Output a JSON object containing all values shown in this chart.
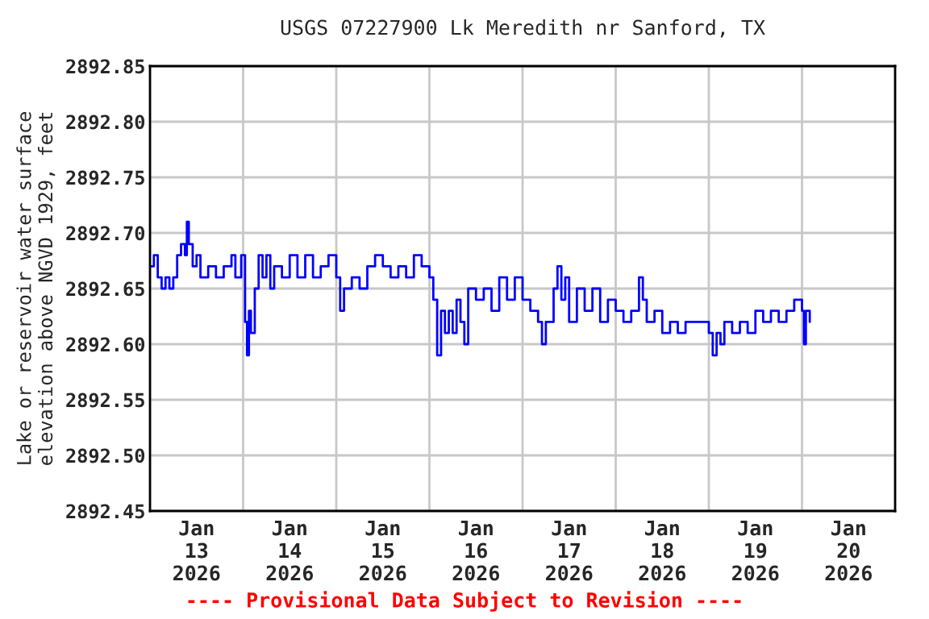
{
  "chart_data": {
    "type": "step",
    "title": "USGS 07227900 Lk Meredith nr Sanford, TX",
    "ylabel": "Lake or reservoir water surface\nelevation above NGVD 1929, feet",
    "annotations": [
      "---- Provisional Data Subject to Revision ----"
    ],
    "grid": true,
    "line_style": "solid",
    "marker": "none",
    "ylim": [
      2892.45,
      2892.85
    ],
    "yticks": [
      {
        "value": 2892.45,
        "label": "2892.45"
      },
      {
        "value": 2892.5,
        "label": "2892.50"
      },
      {
        "value": 2892.55,
        "label": "2892.55"
      },
      {
        "value": 2892.6,
        "label": "2892.60"
      },
      {
        "value": 2892.65,
        "label": "2892.65"
      },
      {
        "value": 2892.7,
        "label": "2892.70"
      },
      {
        "value": 2892.75,
        "label": "2892.75"
      },
      {
        "value": 2892.8,
        "label": "2892.80"
      },
      {
        "value": 2892.85,
        "label": "2892.85"
      }
    ],
    "xlim": [
      "2026-01-13T00:00",
      "2026-01-21T00:00"
    ],
    "xticks": [
      {
        "value": "2026-01-13T00:00",
        "label": null
      },
      {
        "value": "2026-01-13T12:00",
        "label": "Jan\n13\n2026"
      },
      {
        "value": "2026-01-14T00:00",
        "label": null
      },
      {
        "value": "2026-01-14T12:00",
        "label": "Jan\n14\n2026"
      },
      {
        "value": "2026-01-15T00:00",
        "label": null
      },
      {
        "value": "2026-01-15T12:00",
        "label": "Jan\n15\n2026"
      },
      {
        "value": "2026-01-16T00:00",
        "label": null
      },
      {
        "value": "2026-01-16T12:00",
        "label": "Jan\n16\n2026"
      },
      {
        "value": "2026-01-17T00:00",
        "label": null
      },
      {
        "value": "2026-01-17T12:00",
        "label": "Jan\n17\n2026"
      },
      {
        "value": "2026-01-18T00:00",
        "label": null
      },
      {
        "value": "2026-01-18T12:00",
        "label": "Jan\n18\n2026"
      },
      {
        "value": "2026-01-19T00:00",
        "label": null
      },
      {
        "value": "2026-01-19T12:00",
        "label": "Jan\n19\n2026"
      },
      {
        "value": "2026-01-20T00:00",
        "label": null
      },
      {
        "value": "2026-01-20T12:00",
        "label": "Jan\n20\n2026"
      },
      {
        "value": "2026-01-21T00:00",
        "label": null
      }
    ],
    "series": [
      {
        "color": "#0000ff",
        "x": [
          "2026-01-13T00:00",
          "2026-01-13T01:00",
          "2026-01-13T02:00",
          "2026-01-13T03:00",
          "2026-01-13T04:00",
          "2026-01-13T05:00",
          "2026-01-13T06:00",
          "2026-01-13T07:00",
          "2026-01-13T08:00",
          "2026-01-13T09:00",
          "2026-01-13T09:30",
          "2026-01-13T10:00",
          "2026-01-13T11:00",
          "2026-01-13T12:00",
          "2026-01-13T13:00",
          "2026-01-13T15:00",
          "2026-01-13T17:00",
          "2026-01-13T19:00",
          "2026-01-13T21:00",
          "2026-01-13T22:00",
          "2026-01-13T23:30",
          "2026-01-14T00:30",
          "2026-01-14T01:00",
          "2026-01-14T01:30",
          "2026-01-14T02:00",
          "2026-01-14T03:00",
          "2026-01-14T04:00",
          "2026-01-14T05:00",
          "2026-01-14T06:00",
          "2026-01-14T07:00",
          "2026-01-14T08:00",
          "2026-01-14T10:00",
          "2026-01-14T12:00",
          "2026-01-14T14:00",
          "2026-01-14T16:00",
          "2026-01-14T18:00",
          "2026-01-14T20:00",
          "2026-01-14T22:00",
          "2026-01-15T00:00",
          "2026-01-15T01:00",
          "2026-01-15T02:00",
          "2026-01-15T04:00",
          "2026-01-15T06:00",
          "2026-01-15T08:00",
          "2026-01-15T10:00",
          "2026-01-15T12:00",
          "2026-01-15T14:00",
          "2026-01-15T16:00",
          "2026-01-15T18:00",
          "2026-01-15T20:00",
          "2026-01-15T22:00",
          "2026-01-16T00:00",
          "2026-01-16T01:00",
          "2026-01-16T02:00",
          "2026-01-16T03:00",
          "2026-01-16T04:00",
          "2026-01-16T05:00",
          "2026-01-16T06:00",
          "2026-01-16T07:00",
          "2026-01-16T08:00",
          "2026-01-16T09:00",
          "2026-01-16T10:00",
          "2026-01-16T12:00",
          "2026-01-16T14:00",
          "2026-01-16T16:00",
          "2026-01-16T18:00",
          "2026-01-16T20:00",
          "2026-01-16T22:00",
          "2026-01-17T00:00",
          "2026-01-17T02:00",
          "2026-01-17T04:00",
          "2026-01-17T05:00",
          "2026-01-17T06:00",
          "2026-01-17T08:00",
          "2026-01-17T09:00",
          "2026-01-17T10:00",
          "2026-01-17T11:00",
          "2026-01-17T12:00",
          "2026-01-17T14:00",
          "2026-01-17T16:00",
          "2026-01-17T18:00",
          "2026-01-17T20:00",
          "2026-01-17T22:00",
          "2026-01-18T00:00",
          "2026-01-18T02:00",
          "2026-01-18T04:00",
          "2026-01-18T06:00",
          "2026-01-18T07:00",
          "2026-01-18T08:00",
          "2026-01-18T10:00",
          "2026-01-18T12:00",
          "2026-01-18T14:00",
          "2026-01-18T16:00",
          "2026-01-18T18:00",
          "2026-01-18T20:00",
          "2026-01-18T22:00",
          "2026-01-19T00:00",
          "2026-01-19T01:00",
          "2026-01-19T02:00",
          "2026-01-19T03:00",
          "2026-01-19T04:00",
          "2026-01-19T06:00",
          "2026-01-19T08:00",
          "2026-01-19T10:00",
          "2026-01-19T12:00",
          "2026-01-19T14:00",
          "2026-01-19T16:00",
          "2026-01-19T18:00",
          "2026-01-19T20:00",
          "2026-01-19T22:00",
          "2026-01-20T00:00",
          "2026-01-20T00:30",
          "2026-01-20T01:00",
          "2026-01-20T02:00"
        ],
        "values": [
          2892.67,
          2892.68,
          2892.66,
          2892.65,
          2892.66,
          2892.65,
          2892.66,
          2892.68,
          2892.69,
          2892.68,
          2892.71,
          2892.69,
          2892.67,
          2892.68,
          2892.66,
          2892.67,
          2892.66,
          2892.67,
          2892.68,
          2892.66,
          2892.68,
          2892.62,
          2892.59,
          2892.63,
          2892.61,
          2892.65,
          2892.68,
          2892.66,
          2892.68,
          2892.65,
          2892.67,
          2892.66,
          2892.68,
          2892.66,
          2892.68,
          2892.66,
          2892.67,
          2892.68,
          2892.66,
          2892.63,
          2892.65,
          2892.66,
          2892.65,
          2892.67,
          2892.68,
          2892.67,
          2892.66,
          2892.67,
          2892.66,
          2892.68,
          2892.67,
          2892.66,
          2892.64,
          2892.59,
          2892.63,
          2892.61,
          2892.63,
          2892.61,
          2892.64,
          2892.62,
          2892.6,
          2892.65,
          2892.64,
          2892.65,
          2892.63,
          2892.66,
          2892.64,
          2892.66,
          2892.64,
          2892.63,
          2892.62,
          2892.6,
          2892.62,
          2892.65,
          2892.67,
          2892.64,
          2892.66,
          2892.62,
          2892.65,
          2892.63,
          2892.65,
          2892.62,
          2892.64,
          2892.63,
          2892.62,
          2892.63,
          2892.66,
          2892.64,
          2892.62,
          2892.63,
          2892.61,
          2892.62,
          2892.61,
          2892.62,
          2892.62,
          2892.62,
          2892.61,
          2892.59,
          2892.61,
          2892.6,
          2892.62,
          2892.61,
          2892.62,
          2892.61,
          2892.63,
          2892.62,
          2892.63,
          2892.62,
          2892.63,
          2892.64,
          2892.63,
          2892.6,
          2892.63,
          2892.62
        ]
      }
    ]
  }
}
